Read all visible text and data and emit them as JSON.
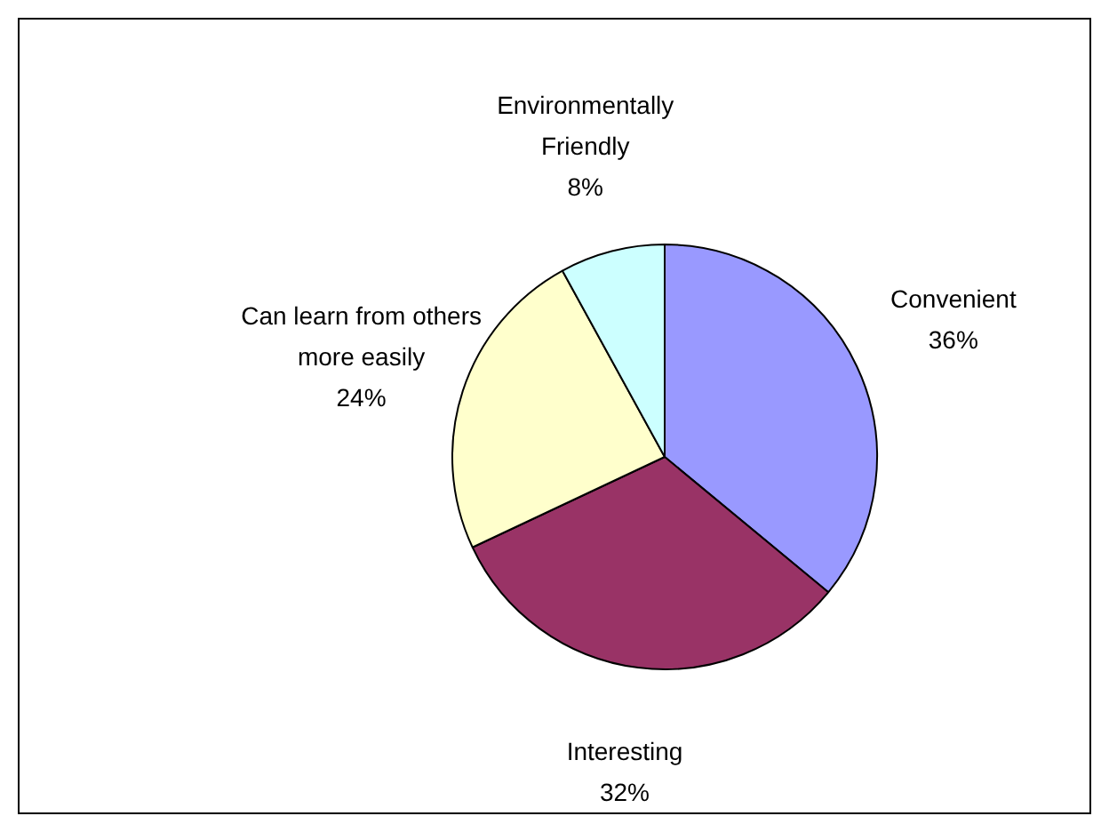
{
  "chart_data": {
    "type": "pie",
    "categories": [
      "Convenient",
      "Interesting",
      "Can learn from others more easily",
      "Environmentally Friendly"
    ],
    "values": [
      36,
      32,
      24,
      8
    ],
    "value_labels": [
      "36%",
      "32%",
      "24%",
      "8%"
    ],
    "colors": [
      "#9999ff",
      "#993366",
      "#ffffcc",
      "#ccffff"
    ],
    "legend": false
  }
}
